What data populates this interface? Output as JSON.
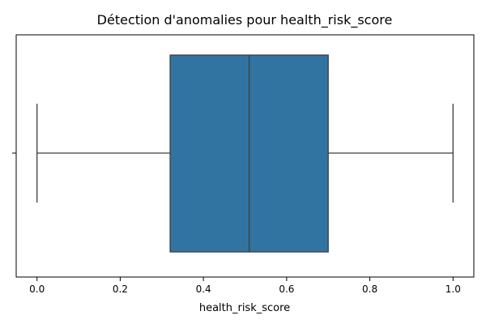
{
  "chart_data": {
    "type": "boxplot",
    "title": "Détection d'anomalies pour health_risk_score",
    "xlabel": "health_risk_score",
    "ylabel": "",
    "xlim": [
      -0.05,
      1.05
    ],
    "x_ticks": [
      0.0,
      0.2,
      0.4,
      0.6,
      0.8,
      1.0
    ],
    "x_tick_labels": [
      "0.0",
      "0.2",
      "0.4",
      "0.6",
      "0.8",
      "1.0"
    ],
    "grid": false,
    "box": {
      "whisker_low": 0.0,
      "q1": 0.32,
      "median": 0.51,
      "q3": 0.7,
      "whisker_high": 1.0,
      "fill_color": "#3274a1",
      "line_color": "#3d3d3d"
    }
  }
}
